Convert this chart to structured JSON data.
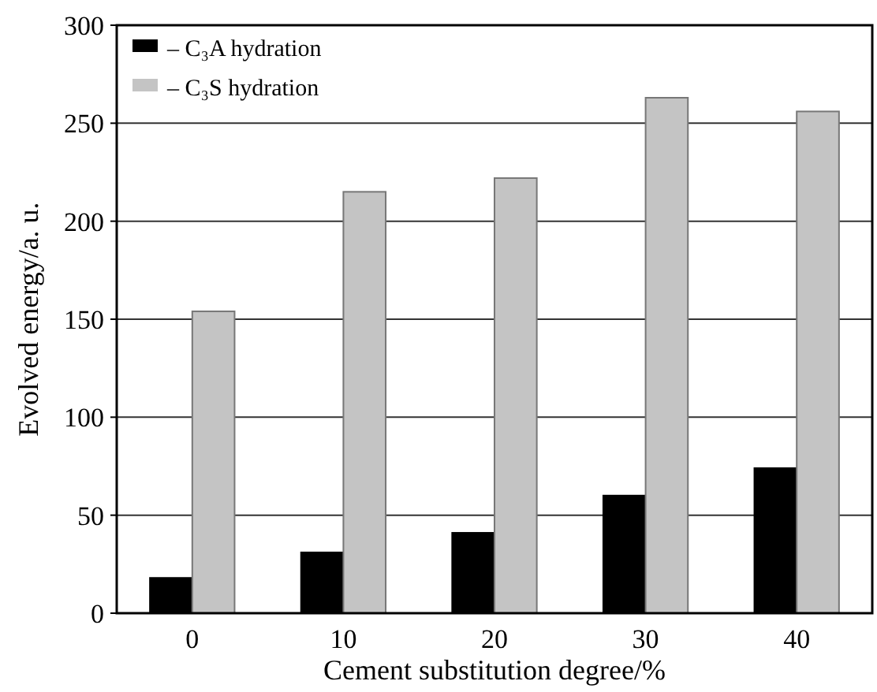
{
  "chart_data": {
    "type": "bar",
    "xlabel": "Cement substitution degree/%",
    "ylabel": "Evolved energy/a. u.",
    "categories": [
      "0",
      "10",
      "20",
      "30",
      "40"
    ],
    "series": [
      {
        "name": "– C₃A hydration",
        "color": "#000000",
        "values": [
          18,
          31,
          41,
          60,
          74
        ]
      },
      {
        "name": "– C₃S hydration",
        "color": "#c4c4c4",
        "values": [
          154,
          215,
          222,
          263,
          256
        ]
      }
    ],
    "ylim": [
      0,
      300
    ],
    "yticks": [
      0,
      50,
      100,
      150,
      200,
      250,
      300
    ],
    "grid": "y",
    "legend": "top left"
  }
}
